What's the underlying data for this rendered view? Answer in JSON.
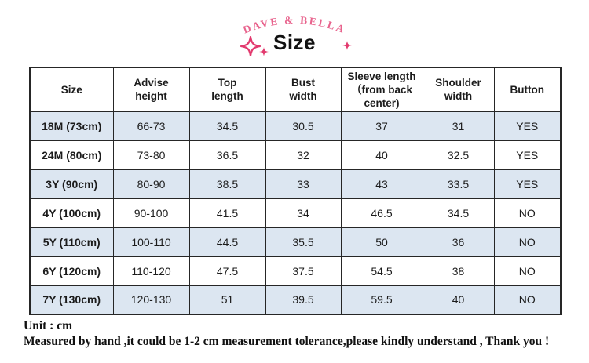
{
  "brand": {
    "name": "DAVE & BELLA",
    "color": "#e8638d"
  },
  "header": {
    "title": "Size"
  },
  "icons": {
    "sparkle_color": "#e23a6e",
    "names": [
      "sparkle-icon-large",
      "sparkle-icon-small-left",
      "sparkle-icon-small-right"
    ]
  },
  "chart_data": {
    "type": "table",
    "title": "Size",
    "unit": "cm",
    "columns": [
      "Size",
      "Advise height",
      "Top length",
      "Bust width",
      "Sleeve length （from back center)",
      "Shoulder width",
      "Button"
    ],
    "rows": [
      [
        "18M (73cm)",
        "66-73",
        "34.5",
        "30.5",
        "37",
        "31",
        "YES"
      ],
      [
        "24M (80cm)",
        "73-80",
        "36.5",
        "32",
        "40",
        "32.5",
        "YES"
      ],
      [
        "3Y (90cm)",
        "80-90",
        "38.5",
        "33",
        "43",
        "33.5",
        "YES"
      ],
      [
        "4Y (100cm)",
        "90-100",
        "41.5",
        "34",
        "46.5",
        "34.5",
        "NO"
      ],
      [
        "5Y (110cm)",
        "100-110",
        "44.5",
        "35.5",
        "50",
        "36",
        "NO"
      ],
      [
        "6Y (120cm)",
        "110-120",
        "47.5",
        "37.5",
        "54.5",
        "38",
        "NO"
      ],
      [
        "7Y (130cm)",
        "120-130",
        "51",
        "39.5",
        "59.5",
        "40",
        "NO"
      ]
    ],
    "stripe_color": "#dce6f1",
    "grid": true,
    "layout_hint": "header row white, data rows alternating light-blue/white, black gridlines"
  },
  "footer": {
    "unit_line": "Unit : cm",
    "note_line": "Measured by hand ,it could be 1-2 cm measurement tolerance,please kindly understand , Thank you !"
  }
}
